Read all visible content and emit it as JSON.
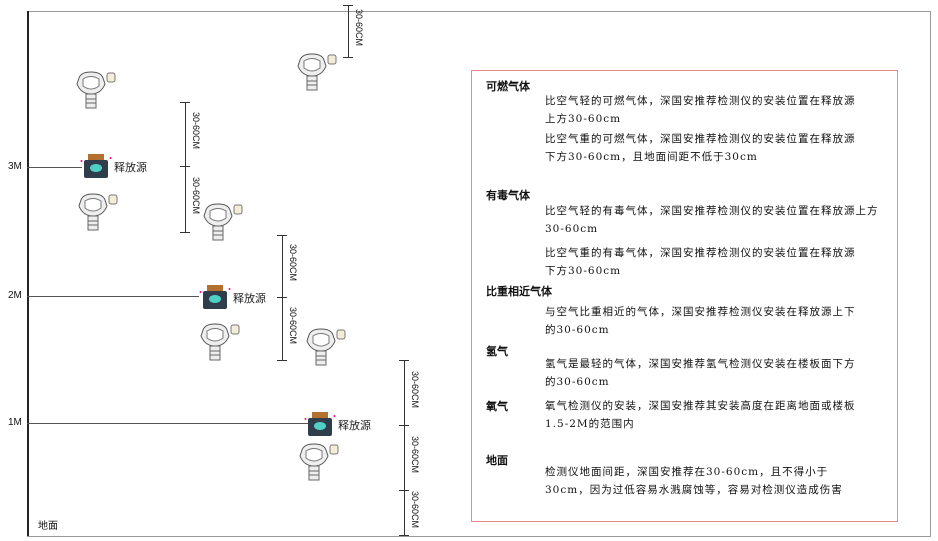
{
  "levels": {
    "l3": "3M",
    "l2": "2M",
    "l1": "1M",
    "ground": "地面"
  },
  "dimension_label": "30-60CM",
  "release_source_label": "释放源",
  "colors": {
    "panel_border": "#e88a8a",
    "source_body": "#2f3e4a",
    "source_cap": "#b3702f",
    "source_face": "#4fd1c5"
  },
  "panel": {
    "sections": [
      {
        "heading": "可燃气体",
        "paragraphs": [
          "比空气轻的可燃气体，深国安推荐检测仪的安装位置在释放源上方30-60cm",
          "比空气重的可燃气体，深国安推荐检测仪的安装位置在释放源下方30-60cm，且地面间距不低于30cm"
        ]
      },
      {
        "heading": "有毒气体",
        "paragraphs": [
          "比空气轻的有毒气体，深国安推荐检测仪的安装位置在释放源上方30-60cm",
          "比空气重的有毒气体，深国安推荐检测仪的安装位置在释放源下方30-60cm"
        ]
      },
      {
        "heading": "比重相近气体",
        "paragraphs": [
          "与空气比重相近的气体，深国安推荐检测仪安装在释放源上下的30-60cm"
        ]
      },
      {
        "heading": "氢气",
        "paragraphs": [
          "氢气是最轻的气体，深国安推荐氢气检测仪安装在楼板面下方的30-60cm"
        ]
      },
      {
        "heading": "氧气",
        "paragraphs": [
          "氧气检测仪的安装，深国安推荐其安装高度在距离地面或楼板1.5-2M的范围内"
        ]
      },
      {
        "heading": "地面",
        "paragraphs": [
          "检测仪地面间距，深国安推荐在30-60cm，且不得小于30cm，因为过低容易水溅腐蚀等，容易对检测仪造成伤害"
        ]
      }
    ]
  }
}
